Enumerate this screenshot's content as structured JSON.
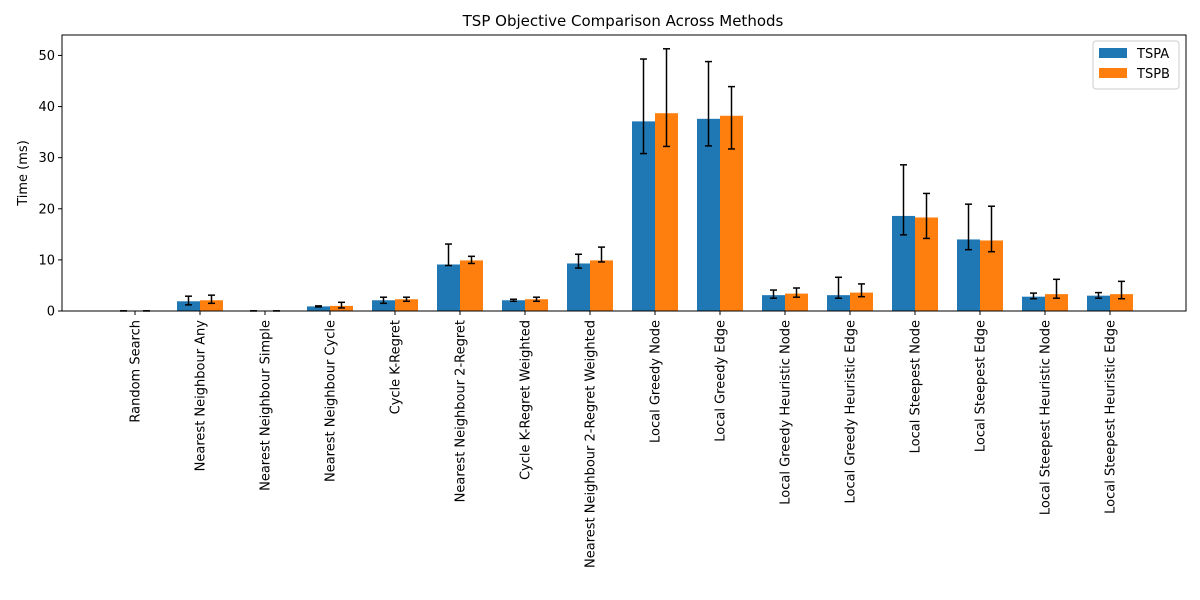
{
  "chart_data": {
    "type": "bar",
    "title": "TSP Objective Comparison Across Methods",
    "xlabel": "",
    "ylabel": "Time (ms)",
    "ylim": [
      0,
      54
    ],
    "yticks": [
      0,
      10,
      20,
      30,
      40,
      50
    ],
    "legend_position": "top-right",
    "grid": false,
    "categories": [
      "Random Search",
      "Nearest Neighbour Any",
      "Nearest Neighbour Simple",
      "Nearest Neighbour Cycle",
      "Cycle K-Regret",
      "Nearest Neighbour 2-Regret",
      "Cycle K-Regret Weighted",
      "Nearest Neighbour 2-Regret Weighted",
      "Local Greedy Node",
      "Local Greedy Edge",
      "Local Greedy Heuristic Node",
      "Local Greedy Heuristic Edge",
      "Local Steepest Node",
      "Local Steepest Edge",
      "Local Steepest Heuristic Node",
      "Local Steepest Heuristic Edge"
    ],
    "series": [
      {
        "name": "TSPA",
        "color": "#1f77b4",
        "values": [
          0.02,
          1.9,
          0.02,
          0.9,
          2.1,
          9.1,
          2.1,
          9.3,
          37.1,
          37.6,
          3.1,
          3.1,
          18.6,
          14.0,
          2.8,
          3.0
        ],
        "err_low": [
          0.02,
          1.2,
          0.02,
          0.8,
          1.5,
          8.9,
          1.9,
          8.4,
          30.8,
          32.3,
          2.5,
          2.5,
          14.9,
          12.0,
          2.4,
          2.5
        ],
        "err_high": [
          0.02,
          2.9,
          0.02,
          1.0,
          2.7,
          13.1,
          2.3,
          11.1,
          49.3,
          48.8,
          4.1,
          6.6,
          28.6,
          20.9,
          3.5,
          3.6
        ]
      },
      {
        "name": "TSPB",
        "color": "#ff7f0e",
        "values": [
          0.02,
          2.1,
          0.02,
          1.0,
          2.3,
          9.9,
          2.3,
          9.9,
          38.7,
          38.2,
          3.4,
          3.6,
          18.3,
          13.8,
          3.3,
          3.3
        ],
        "err_low": [
          0.02,
          1.5,
          0.02,
          0.6,
          1.9,
          9.3,
          1.9,
          9.6,
          32.2,
          31.7,
          2.7,
          2.8,
          14.2,
          11.6,
          2.5,
          2.4
        ],
        "err_high": [
          0.02,
          3.1,
          0.02,
          1.7,
          2.7,
          10.7,
          2.7,
          12.5,
          51.3,
          43.9,
          4.5,
          5.3,
          23.0,
          20.5,
          6.2,
          5.8
        ]
      }
    ]
  }
}
